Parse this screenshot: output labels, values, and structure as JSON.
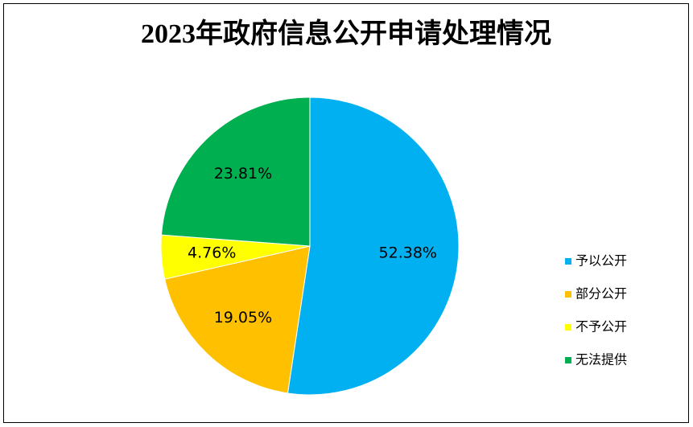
{
  "chart_data": {
    "type": "pie",
    "title": "2023年政府信息公开申请处理情况",
    "categories": [
      "予以公开",
      "部分公开",
      "不予公开",
      "无法提供"
    ],
    "values": [
      52.38,
      19.05,
      4.76,
      23.81
    ],
    "value_labels": [
      "52.38%",
      "19.05%",
      "4.76%",
      "23.81%"
    ],
    "colors": [
      "#00b0f0",
      "#ffc000",
      "#ffff00",
      "#00b050"
    ],
    "legend": "right"
  }
}
